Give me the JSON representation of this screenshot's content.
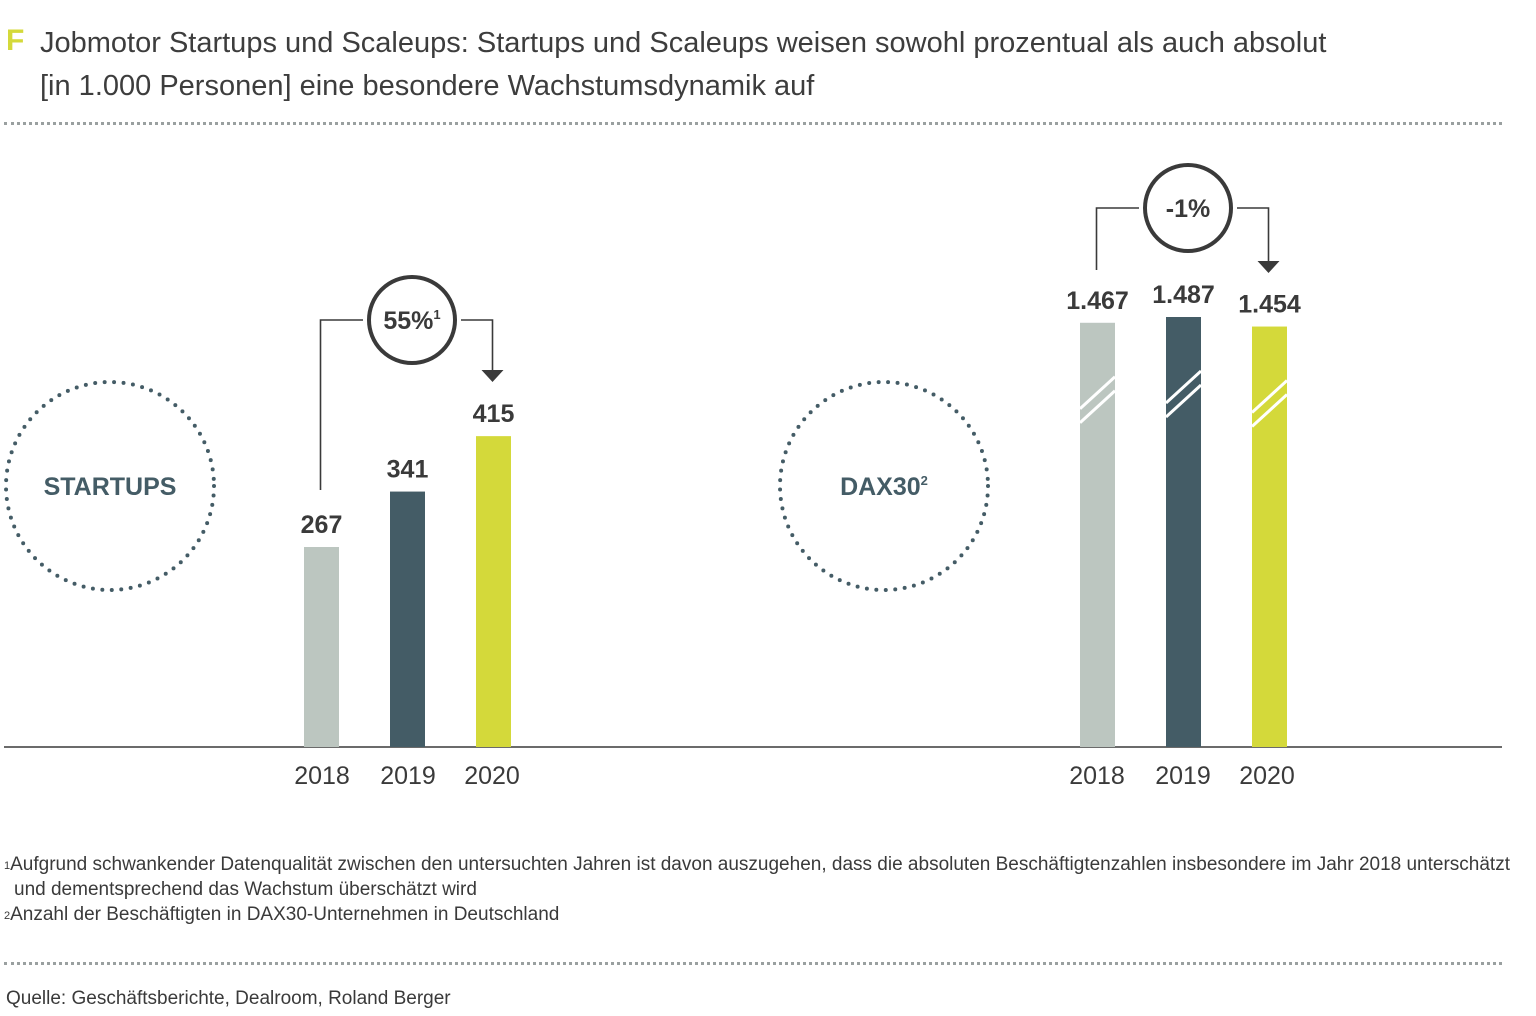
{
  "header": {
    "letter": "F",
    "title_line1": "Jobmotor Startups und Scaleups: Startups und Scaleups weisen sowohl prozentual als auch absolut",
    "title_line2": "[in 1.000 Personen] eine besondere Wachstumsdynamik auf"
  },
  "chart_data": [
    {
      "type": "bar",
      "group_label": "STARTUPS",
      "categories": [
        "2018",
        "2019",
        "2020"
      ],
      "values": [
        267,
        341,
        415
      ],
      "value_labels": [
        "267",
        "341",
        "415"
      ],
      "change_label": "55%",
      "change_footnote": "1",
      "axis_break": false,
      "ylim": [
        0,
        1500
      ]
    },
    {
      "type": "bar",
      "group_label": "DAX30",
      "group_footnote": "2",
      "categories": [
        "2018",
        "2019",
        "2020"
      ],
      "values": [
        1467,
        1487,
        1454
      ],
      "value_labels": [
        "1.467",
        "1.487",
        "1.454"
      ],
      "change_label": "-1%",
      "axis_break": true,
      "ylim": [
        0,
        1500
      ]
    }
  ],
  "colors": {
    "2018": "#bcc6c0",
    "2019": "#445c66",
    "2020": "#d4d93a",
    "circle_text": "#445c66",
    "dots": "#445c66",
    "text": "#3a3a3a"
  },
  "footnotes": {
    "note1_mark": "1",
    "note1": "Aufgrund schwankender Datenqualität zwischen den untersuchten Jahren ist davon auszugehen, dass die absoluten Beschäftigtenzahlen insbesondere im Jahr 2018 unterschätzt und dementsprechend das Wachstum überschätzt wird",
    "note2_mark": "2",
    "note2": "Anzahl der Beschäftigten in DAX30-Unternehmen in Deutschland"
  },
  "source": "Quelle: Geschäftsberichte, Dealroom, Roland Berger"
}
